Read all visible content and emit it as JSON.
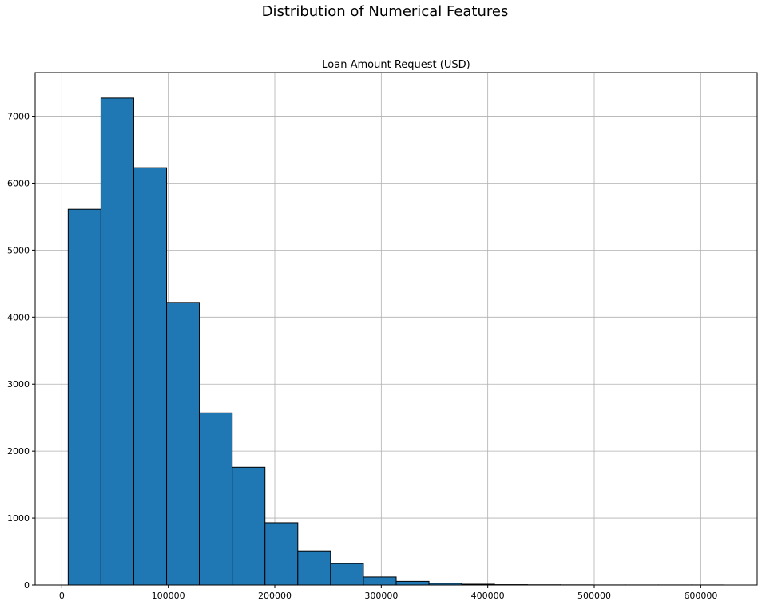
{
  "page": {
    "suptitle": "Distribution of Numerical Features"
  },
  "chart_data": {
    "type": "bar",
    "title": "Loan Amount Request (USD)",
    "xlabel": "",
    "ylabel": "",
    "histogram": true,
    "bin_edges": [
      6000,
      36800,
      67600,
      98400,
      129200,
      160000,
      190800,
      221600,
      252400,
      283200,
      314000,
      344800,
      375600,
      406400,
      437200,
      468000,
      498800,
      529600,
      560400,
      591200,
      622000
    ],
    "values": [
      5610,
      7270,
      6230,
      4220,
      2570,
      1760,
      930,
      510,
      320,
      120,
      55,
      25,
      12,
      5,
      3,
      2,
      1,
      1,
      1,
      1
    ],
    "xlim": [
      -25000,
      653000
    ],
    "ylim": [
      0,
      7650
    ],
    "x_ticks": [
      0,
      100000,
      200000,
      300000,
      400000,
      500000,
      600000
    ],
    "y_ticks": [
      0,
      1000,
      2000,
      3000,
      4000,
      5000,
      6000,
      7000
    ],
    "bar_color": "#1f77b4",
    "edge_color": "#000000",
    "grid": true
  }
}
